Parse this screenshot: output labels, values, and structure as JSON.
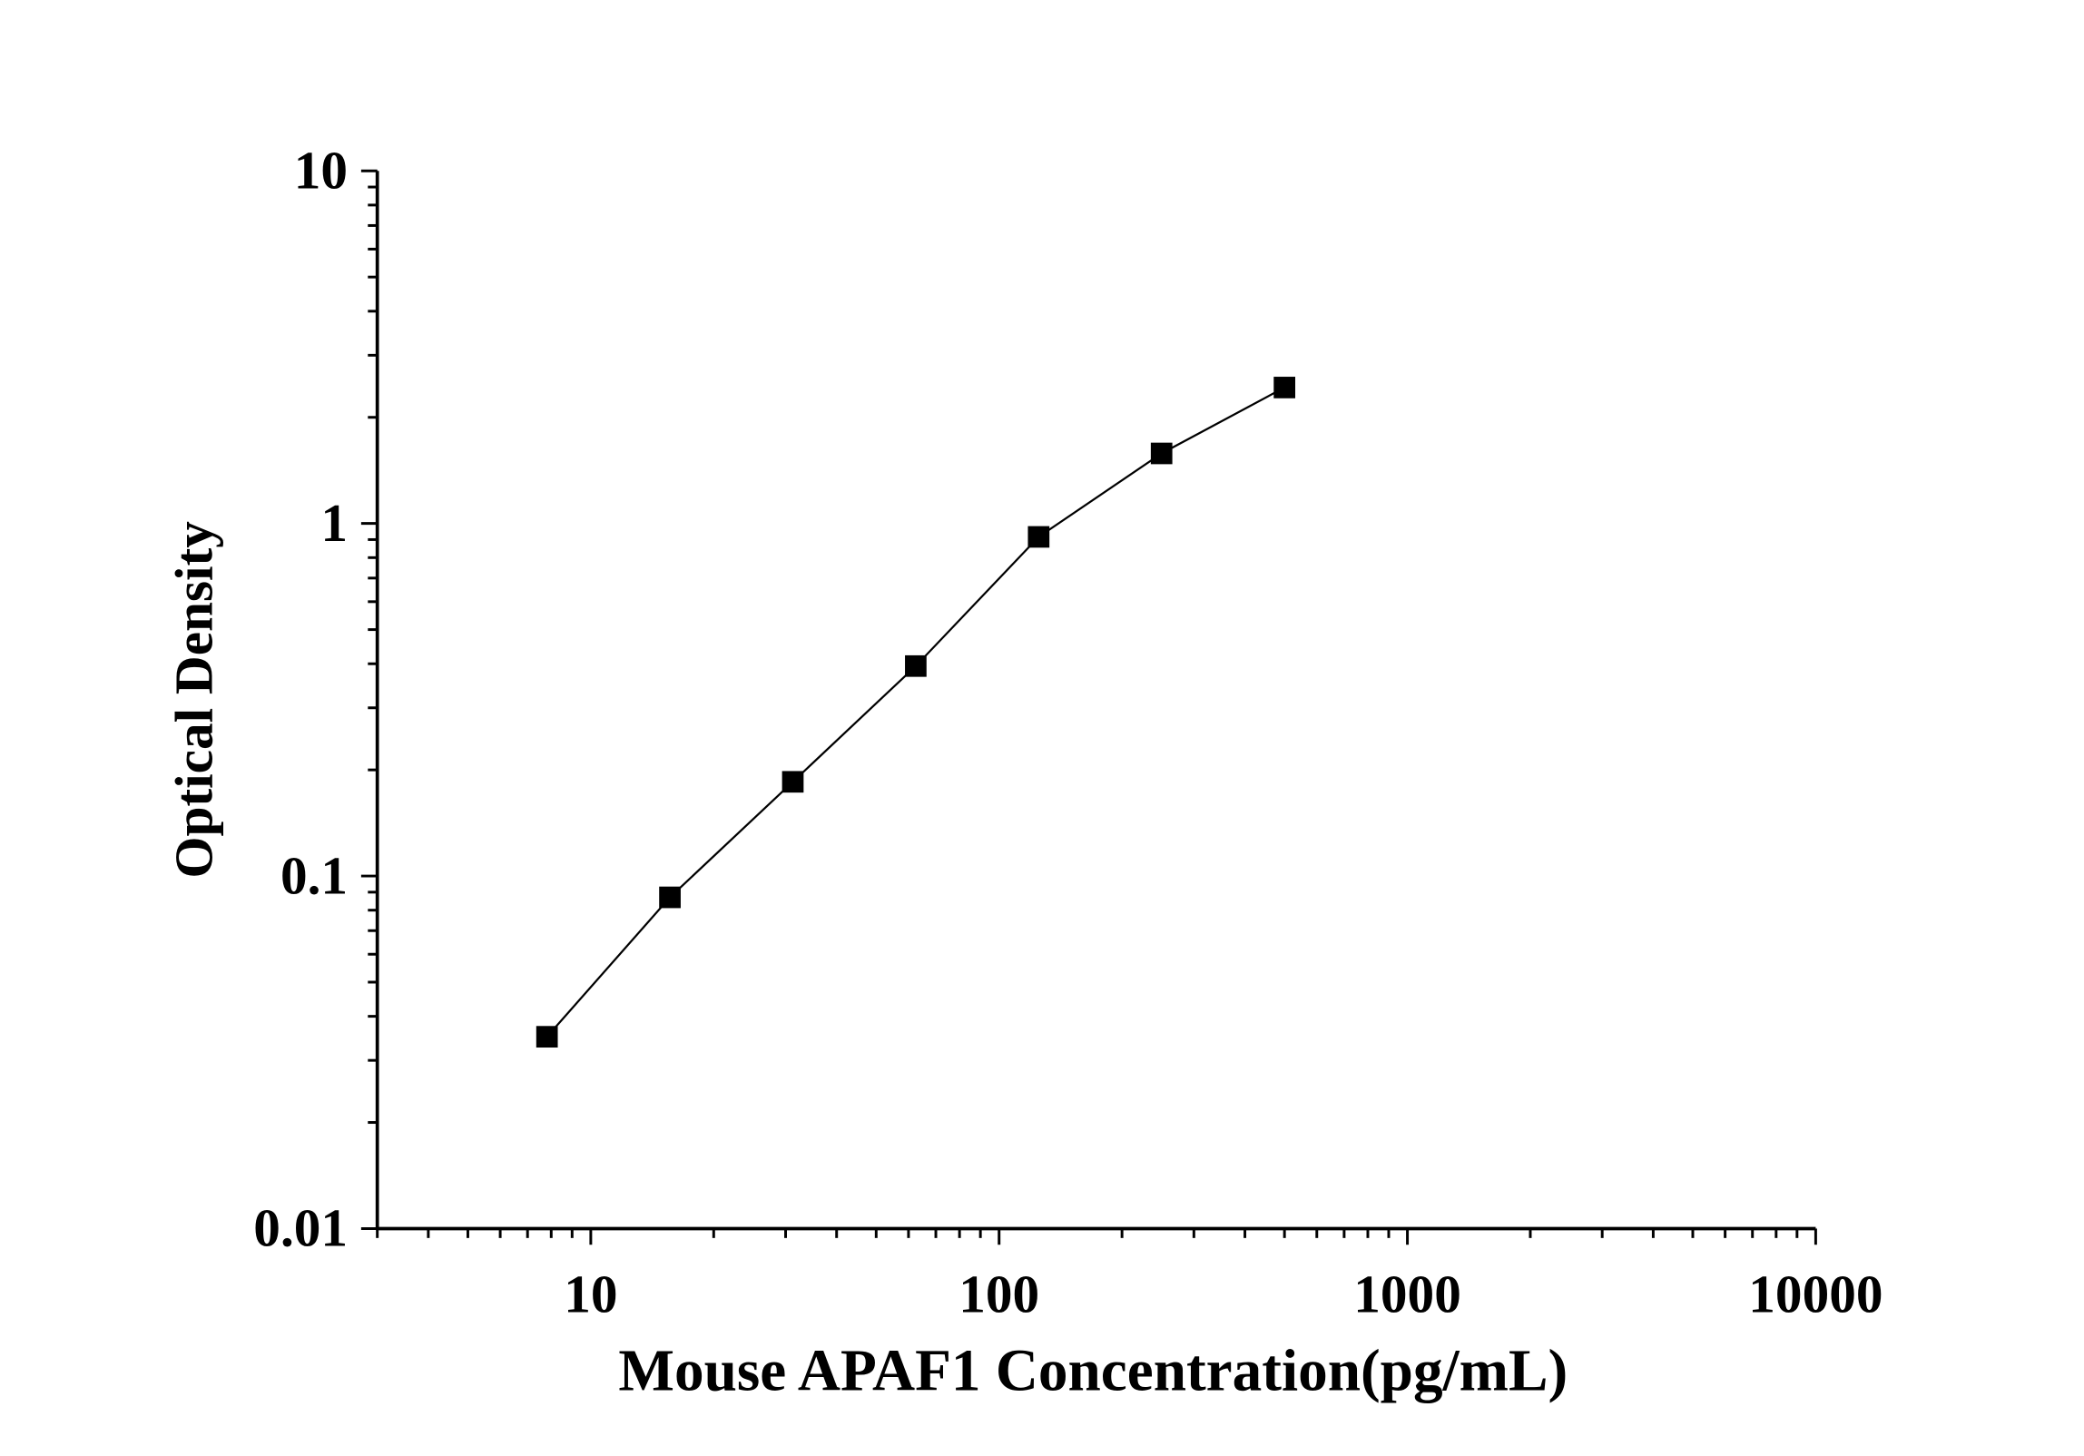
{
  "chart_data": {
    "type": "scatter",
    "title": "",
    "xlabel": "Mouse APAF1 Concentration(pg/mL)",
    "ylabel": "Optical Density",
    "x_scale": "log",
    "y_scale": "log",
    "xlim": [
      3,
      10000
    ],
    "ylim": [
      0.01,
      10
    ],
    "x_ticks": [
      10,
      100,
      1000,
      10000
    ],
    "x_tick_labels": [
      "10",
      "100",
      "1000",
      "10000"
    ],
    "y_ticks": [
      0.01,
      0.1,
      1,
      10
    ],
    "y_tick_labels": [
      "0.01",
      "0.1",
      "1",
      "10"
    ],
    "grid": false,
    "marker": "square",
    "connected_line": true,
    "color": "#000000",
    "series": [
      {
        "x": [
          7.8125,
          15.625,
          31.25,
          62.5,
          125,
          250,
          500
        ],
        "y": [
          0.035,
          0.087,
          0.185,
          0.394,
          0.916,
          1.58,
          2.43
        ]
      }
    ]
  }
}
